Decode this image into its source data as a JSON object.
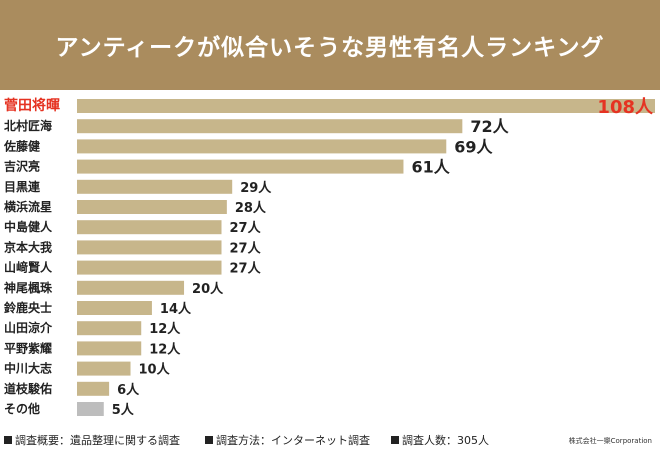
{
  "header": {
    "title": "アンティークが似合いそうな男性有名人ランキング"
  },
  "colors": {
    "header_bg": "#aa8c5e",
    "bar": "#c7b68b",
    "bar_other": "#bdbdbd",
    "highlight": "#e53322",
    "text": "#222222"
  },
  "chart_data": {
    "type": "bar",
    "orientation": "horizontal",
    "title": "アンティークが似合いそうな男性有名人ランキング",
    "unit": "人",
    "xlim": [
      0,
      108
    ],
    "categories": [
      "菅田将暉",
      "北村匠海",
      "佐藤健",
      "吉沢亮",
      "目黒連",
      "横浜流星",
      "中島健人",
      "京本大我",
      "山﨑賢人",
      "神尾楓珠",
      "鈴鹿央士",
      "山田涼介",
      "平野紫耀",
      "中川大志",
      "道枝駿佑",
      "その他"
    ],
    "values": [
      108,
      72,
      69,
      61,
      29,
      28,
      27,
      27,
      27,
      20,
      14,
      12,
      12,
      10,
      6,
      5
    ],
    "value_labels": [
      "108人",
      "72人",
      "69人",
      "61人",
      "29人",
      "28人",
      "27人",
      "27人",
      "27人",
      "20人",
      "14人",
      "12人",
      "12人",
      "10人",
      "6人",
      "5人"
    ],
    "highlight_index": 0,
    "other_index": 15
  },
  "footer": {
    "notes": [
      "調査概要：遺品整理に関する調査",
      "調査方法：インターネット調査",
      "調査人数：305人"
    ],
    "credit": "株式会社一樂Corporation"
  }
}
